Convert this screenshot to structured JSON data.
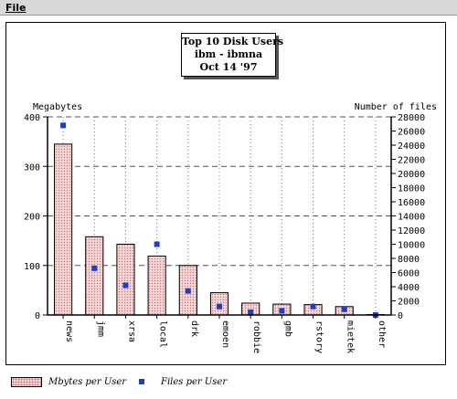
{
  "menu": {
    "file_label": "File"
  },
  "chart_data": {
    "type": "bar",
    "title": "Top 10 Disk Users",
    "subtitle_lines": [
      "ibm - ibmna",
      "Oct 14 '97"
    ],
    "y_left_label": "Megabytes",
    "y_right_label": "Number of files",
    "categories": [
      "news",
      "jmm",
      "xrsa",
      "local",
      "drk",
      "emoen",
      "robbie",
      "gmb",
      "rstory",
      "mietek",
      "other"
    ],
    "series": [
      {
        "name": "Mbytes per User",
        "type": "bar",
        "axis": "left",
        "values": [
          345,
          158,
          143,
          119,
          100,
          45,
          24,
          22,
          21,
          17,
          1
        ]
      },
      {
        "name": "Files per User",
        "type": "scatter",
        "axis": "right",
        "values": [
          26800,
          6600,
          4200,
          10000,
          3400,
          1200,
          400,
          600,
          1200,
          800,
          0
        ]
      }
    ],
    "ylim_left": [
      0,
      400
    ],
    "yticks_left": [
      "0",
      "100",
      "200",
      "300",
      "400"
    ],
    "ylim_right": [
      0,
      28000
    ],
    "yticks_right": [
      "0",
      "2000",
      "4000",
      "6000",
      "8000",
      "10000",
      "12000",
      "14000",
      "16000",
      "18000",
      "20000",
      "22000",
      "24000",
      "26000",
      "28000"
    ],
    "grid": true,
    "legend_position": "bottom",
    "colors": {
      "bar_fill": "#f6d6d6",
      "bar_dots": "#c87a7a",
      "points": "#1f3fbf",
      "grid": "#555555"
    }
  }
}
